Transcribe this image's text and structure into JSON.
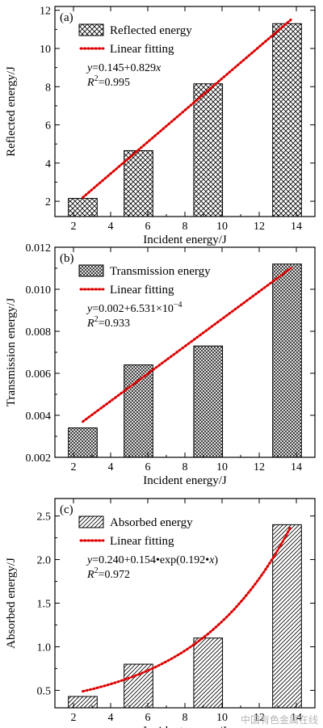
{
  "colors": {
    "bar_edge": "#000000",
    "bar_hatch": "#000000",
    "fit_line": "#dd0000"
  },
  "watermark": "中国有色金属在线",
  "chart_data": [
    {
      "type": "bar",
      "panel": "(a)",
      "xlabel": "Incident energy/J",
      "ylabel": "Reflected energy/J",
      "xlim": [
        1,
        15
      ],
      "ylim": [
        1.2,
        12.2
      ],
      "xticks": [
        "2",
        "4",
        "6",
        "8",
        "10",
        "12",
        "14"
      ],
      "yticks": [
        "2",
        "4",
        "6",
        "8",
        "10",
        "12"
      ],
      "hatch": "crosshatch",
      "x": [
        2.5,
        5.5,
        9.25,
        13.5
      ],
      "values": [
        2.15,
        4.65,
        8.15,
        11.3
      ],
      "legend": {
        "placement": "top-left",
        "bar_label": "Reflected energy",
        "fit_label": "Linear fitting"
      },
      "equation": {
        "pre": "",
        "yvar": "y",
        "expr": "=0.145+0.829",
        "xvar": "x",
        "exp_base": "",
        "exp_sup": ""
      },
      "r2": {
        "sym": "R",
        "sup": "2",
        "val": "=0.995"
      },
      "fit": {
        "kind": "linear",
        "x": [
          2.5,
          13.7
        ],
        "y": [
          2.2,
          11.5
        ]
      }
    },
    {
      "type": "bar",
      "panel": "(b)",
      "xlabel": "Incident energy/J",
      "ylabel": "Transmission energy/J",
      "xlim": [
        1,
        15
      ],
      "ylim": [
        0.002,
        0.012
      ],
      "xticks": [
        "2",
        "4",
        "6",
        "8",
        "10",
        "12",
        "14"
      ],
      "yticks": [
        "0.002",
        "0.004",
        "0.006",
        "0.008",
        "0.010",
        "0.012"
      ],
      "hatch": "dense-crosshatch",
      "x": [
        2.5,
        5.5,
        9.25,
        13.5
      ],
      "values": [
        0.0034,
        0.0064,
        0.0073,
        0.0112
      ],
      "legend": {
        "placement": "top-left",
        "bar_label": "Transmission energy",
        "fit_label": "Linear fitting"
      },
      "equation": {
        "pre": "",
        "yvar": "y",
        "expr": "=0.002+6.531×10",
        "xvar": "",
        "exp_base": "",
        "exp_sup": "−4"
      },
      "r2": {
        "sym": "R",
        "sup": "2",
        "val": "=0.933"
      },
      "fit": {
        "kind": "linear",
        "x": [
          2.5,
          13.7
        ],
        "y": [
          0.0037,
          0.011
        ]
      }
    },
    {
      "type": "bar",
      "panel": "(c)",
      "xlabel": "Incident energy/J",
      "ylabel": "Absorbed energy/J",
      "xlim": [
        1,
        15
      ],
      "ylim": [
        0.3,
        2.7
      ],
      "xticks": [
        "2",
        "4",
        "6",
        "8",
        "10",
        "12",
        "14"
      ],
      "yticks": [
        "0.5",
        "1.0",
        "1.5",
        "2.0",
        "2.5"
      ],
      "hatch": "diagonal",
      "x": [
        2.5,
        5.5,
        9.25,
        13.5
      ],
      "values": [
        0.43,
        0.8,
        1.1,
        2.4
      ],
      "legend": {
        "placement": "top-left",
        "bar_label": "Absorbed energy",
        "fit_label": "Linear fitting"
      },
      "equation": {
        "pre": "",
        "yvar": "y",
        "expr": "=0.240+0.154•exp(0.192•",
        "xvar": "x",
        "exp_base": ")",
        "exp_sup": ""
      },
      "r2": {
        "sym": "R",
        "sup": "2",
        "val": "=0.972"
      },
      "fit": {
        "kind": "exp",
        "a": 0.24,
        "b": 0.154,
        "c": 0.192,
        "x": [
          2.5,
          13.7
        ]
      }
    }
  ]
}
